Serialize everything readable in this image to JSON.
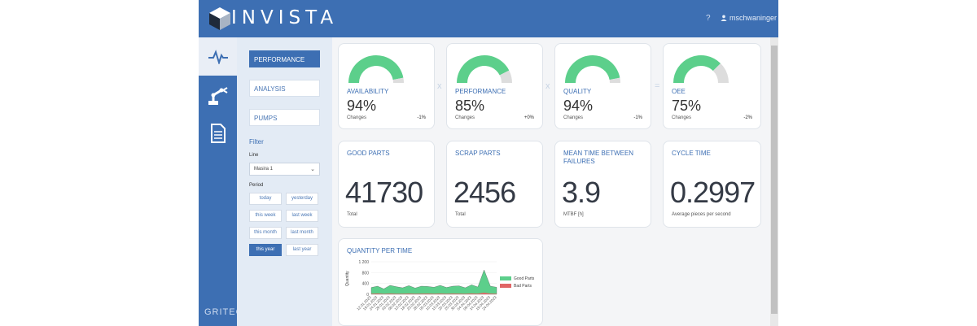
{
  "header": {
    "brand": "INVISTA",
    "help": "?",
    "user": "mschwaninger"
  },
  "iconbar": {
    "footer": "GRITEC"
  },
  "subnav": {
    "items": [
      {
        "label": "PERFORMANCE",
        "active": true
      },
      {
        "label": "ANALYSIS",
        "active": false
      },
      {
        "label": "PUMPS",
        "active": false
      }
    ],
    "filter": {
      "title": "Filter",
      "line_label": "Line",
      "line_value": "Masira 1",
      "period_label": "Period",
      "periods": [
        "today",
        "yesterday",
        "this week",
        "last week",
        "this month",
        "last month",
        "this year",
        "last year"
      ],
      "active_period": "this year"
    }
  },
  "gauges": [
    {
      "label": "AVAILABILITY",
      "value": "94%",
      "pct": 0.94,
      "changes": "Changes",
      "delta": "-1%"
    },
    {
      "label": "PERFORMANCE",
      "value": "85%",
      "pct": 0.85,
      "changes": "Changes",
      "delta": "+0%"
    },
    {
      "label": "QUALITY",
      "value": "94%",
      "pct": 0.94,
      "changes": "Changes",
      "delta": "-1%"
    },
    {
      "label": "OEE",
      "value": "75%",
      "pct": 0.75,
      "changes": "Changes",
      "delta": "-2%"
    }
  ],
  "operators": [
    "x",
    "x",
    "="
  ],
  "stats": [
    {
      "title": "GOOD PARTS",
      "value": "41730",
      "sub": "Total"
    },
    {
      "title": "SCRAP PARTS",
      "value": "2456",
      "sub": "Total"
    },
    {
      "title": "MEAN TIME BETWEEN FAILURES",
      "value": "3.9",
      "sub": "MTBF [h]"
    },
    {
      "title": "CYCLE TIME",
      "value": "0.2997",
      "sub": "Average pieces per second"
    }
  ],
  "chart_title": "QUANTITY PER TIME",
  "colors": {
    "primary": "#3d6fb3",
    "good": "#5ccf8b",
    "bad": "#e06666",
    "gauge_bg": "#dddddd"
  },
  "chart_data": {
    "type": "area",
    "ylabel": "Quantity",
    "ylim": [
      0,
      1200
    ],
    "yticks": [
      "1 200",
      "800",
      "400",
      "0"
    ],
    "x": [
      "12.01.2023",
      "19.01.2023",
      "24.01.2023",
      "29.01.2023",
      "03.02.2023",
      "08.02.2023",
      "13.02.2023",
      "18.02.2023",
      "23.02.2023",
      "28.02.2023",
      "05.03.2023",
      "10.03.2023",
      "15.03.2023",
      "20.03.2023",
      "25.03.2023",
      "30.03.2023",
      "04.04.2023",
      "09.04.2023",
      "14.04.2023",
      "19.04.2023",
      "24.04.2023"
    ],
    "series": [
      {
        "name": "Good Parts",
        "values": [
          250,
          300,
          200,
          330,
          280,
          240,
          320,
          230,
          300,
          290,
          260,
          330,
          250,
          300,
          310,
          240,
          350,
          270,
          900,
          300,
          260
        ]
      },
      {
        "name": "Bad Parts",
        "values": [
          20,
          30,
          15,
          25,
          20,
          18,
          25,
          20,
          22,
          25,
          20,
          28,
          18,
          25,
          22,
          20,
          30,
          22,
          60,
          25,
          20
        ]
      }
    ],
    "legend": "right"
  }
}
